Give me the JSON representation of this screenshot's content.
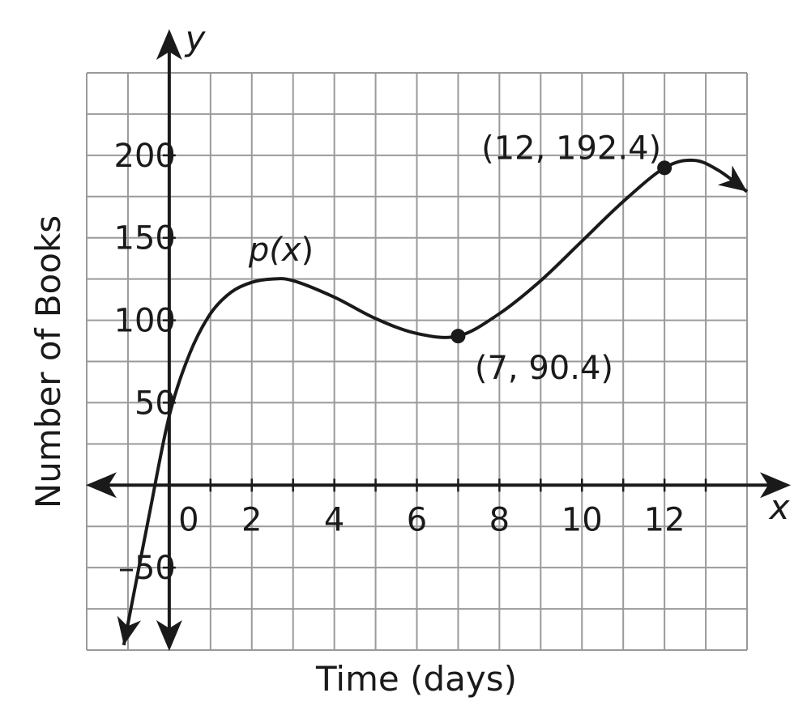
{
  "chart_data": {
    "type": "line",
    "xlabel": "Time (days)",
    "ylabel": "Number of Books",
    "x_axis_symbol": "x",
    "y_axis_symbol": "y",
    "xlim": [
      -2,
      14
    ],
    "ylim": [
      -100,
      250
    ],
    "grid": true,
    "x_ticks": [
      {
        "value": 0,
        "label": "0"
      },
      {
        "value": 2,
        "label": "2"
      },
      {
        "value": 4,
        "label": "4"
      },
      {
        "value": 6,
        "label": "6"
      },
      {
        "value": 8,
        "label": "8"
      },
      {
        "value": 10,
        "label": "10"
      },
      {
        "value": 12,
        "label": "12"
      }
    ],
    "y_ticks": [
      {
        "value": -50,
        "label": "–50"
      },
      {
        "value": 50,
        "label": "50"
      },
      {
        "value": 100,
        "label": "100"
      },
      {
        "value": 150,
        "label": "150"
      },
      {
        "value": 200,
        "label": "200"
      }
    ],
    "series": [
      {
        "name": "p(x)",
        "points": [
          {
            "x": -1.1,
            "y": -97
          },
          {
            "x": -0.5,
            "y": -20
          },
          {
            "x": 0,
            "y": 42
          },
          {
            "x": 0.5,
            "y": 80
          },
          {
            "x": 1,
            "y": 104
          },
          {
            "x": 1.5,
            "y": 117
          },
          {
            "x": 2,
            "y": 123
          },
          {
            "x": 2.5,
            "y": 125
          },
          {
            "x": 3,
            "y": 124
          },
          {
            "x": 4,
            "y": 114
          },
          {
            "x": 5,
            "y": 101
          },
          {
            "x": 6,
            "y": 92
          },
          {
            "x": 7,
            "y": 90.4
          },
          {
            "x": 8,
            "y": 104
          },
          {
            "x": 9,
            "y": 124
          },
          {
            "x": 10,
            "y": 148
          },
          {
            "x": 11,
            "y": 172
          },
          {
            "x": 12,
            "y": 192.4
          },
          {
            "x": 12.7,
            "y": 197
          },
          {
            "x": 13.3,
            "y": 191
          },
          {
            "x": 14,
            "y": 178
          }
        ]
      }
    ],
    "function_label": {
      "prefix": "p(",
      "var": "x",
      "suffix": ")"
    },
    "marked_points": [
      {
        "x": 7,
        "y": 90.4,
        "label": "(7, 90.4)"
      },
      {
        "x": 12,
        "y": 192.4,
        "label": "(12, 192.4)"
      }
    ]
  },
  "colors": {
    "grid": "#9a9a9a",
    "ink": "#1a1a1a",
    "background": "#ffffff"
  }
}
